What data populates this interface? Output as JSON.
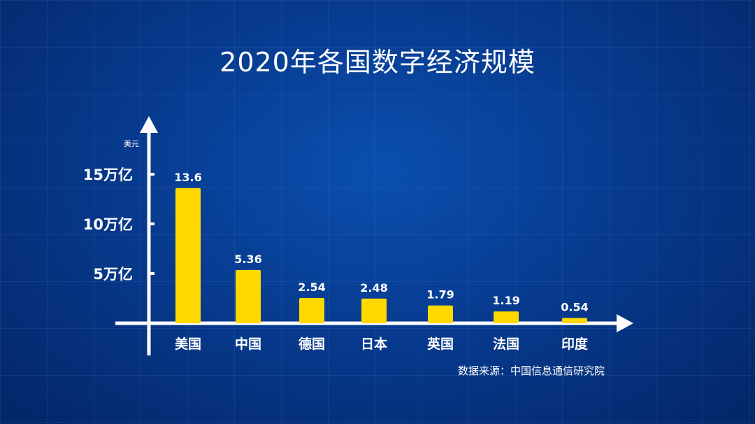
{
  "title": "2020年各国数字经济规模",
  "source": "数据来源：中国信息通信研究院",
  "colors": {
    "bar": "#ffd800",
    "axis": "#ffffff",
    "background": "#073b8f"
  },
  "chart_data": {
    "type": "bar",
    "title": "2020年各国数字经济规模",
    "ylabel": "美元",
    "categories": [
      "美国",
      "中国",
      "德国",
      "日本",
      "英国",
      "法国",
      "印度"
    ],
    "values": [
      13.6,
      5.36,
      2.54,
      2.48,
      1.79,
      1.19,
      0.54
    ],
    "data_labels": [
      "13.6",
      "5.36",
      "2.54",
      "2.48",
      "1.79",
      "1.19",
      "0.54"
    ],
    "yticks": [
      5,
      10,
      15
    ],
    "ytick_labels": [
      "5万亿",
      "10万亿",
      "15万亿"
    ],
    "ylim": [
      0,
      20
    ],
    "grid": false,
    "legend": "none"
  }
}
